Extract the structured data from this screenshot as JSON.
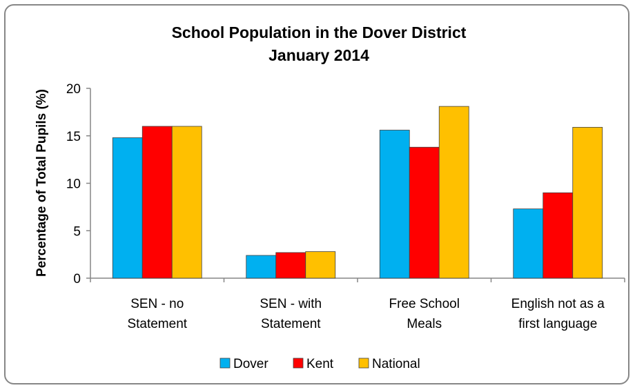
{
  "chart_data": {
    "type": "bar",
    "title": "School Population in the Dover District",
    "subtitle": "January 2014",
    "ylabel": "Percentage of Total Pupils (%)",
    "xlabel": "",
    "ylim": [
      0,
      20
    ],
    "yticks": [
      0,
      5,
      10,
      15,
      20
    ],
    "grid": false,
    "legend_position": "bottom",
    "categories": [
      [
        "SEN - no",
        "Statement"
      ],
      [
        "SEN - with",
        "Statement"
      ],
      [
        "Free School",
        "Meals"
      ],
      [
        "English not as a",
        "first language"
      ]
    ],
    "series": [
      {
        "name": "Dover",
        "color": "#00b0f0",
        "values": [
          14.8,
          2.4,
          15.6,
          7.3
        ]
      },
      {
        "name": "Kent",
        "color": "#ff0000",
        "values": [
          16.0,
          2.7,
          13.8,
          9.0
        ]
      },
      {
        "name": "National",
        "color": "#ffc000",
        "values": [
          16.0,
          2.8,
          18.1,
          15.9
        ]
      }
    ]
  }
}
